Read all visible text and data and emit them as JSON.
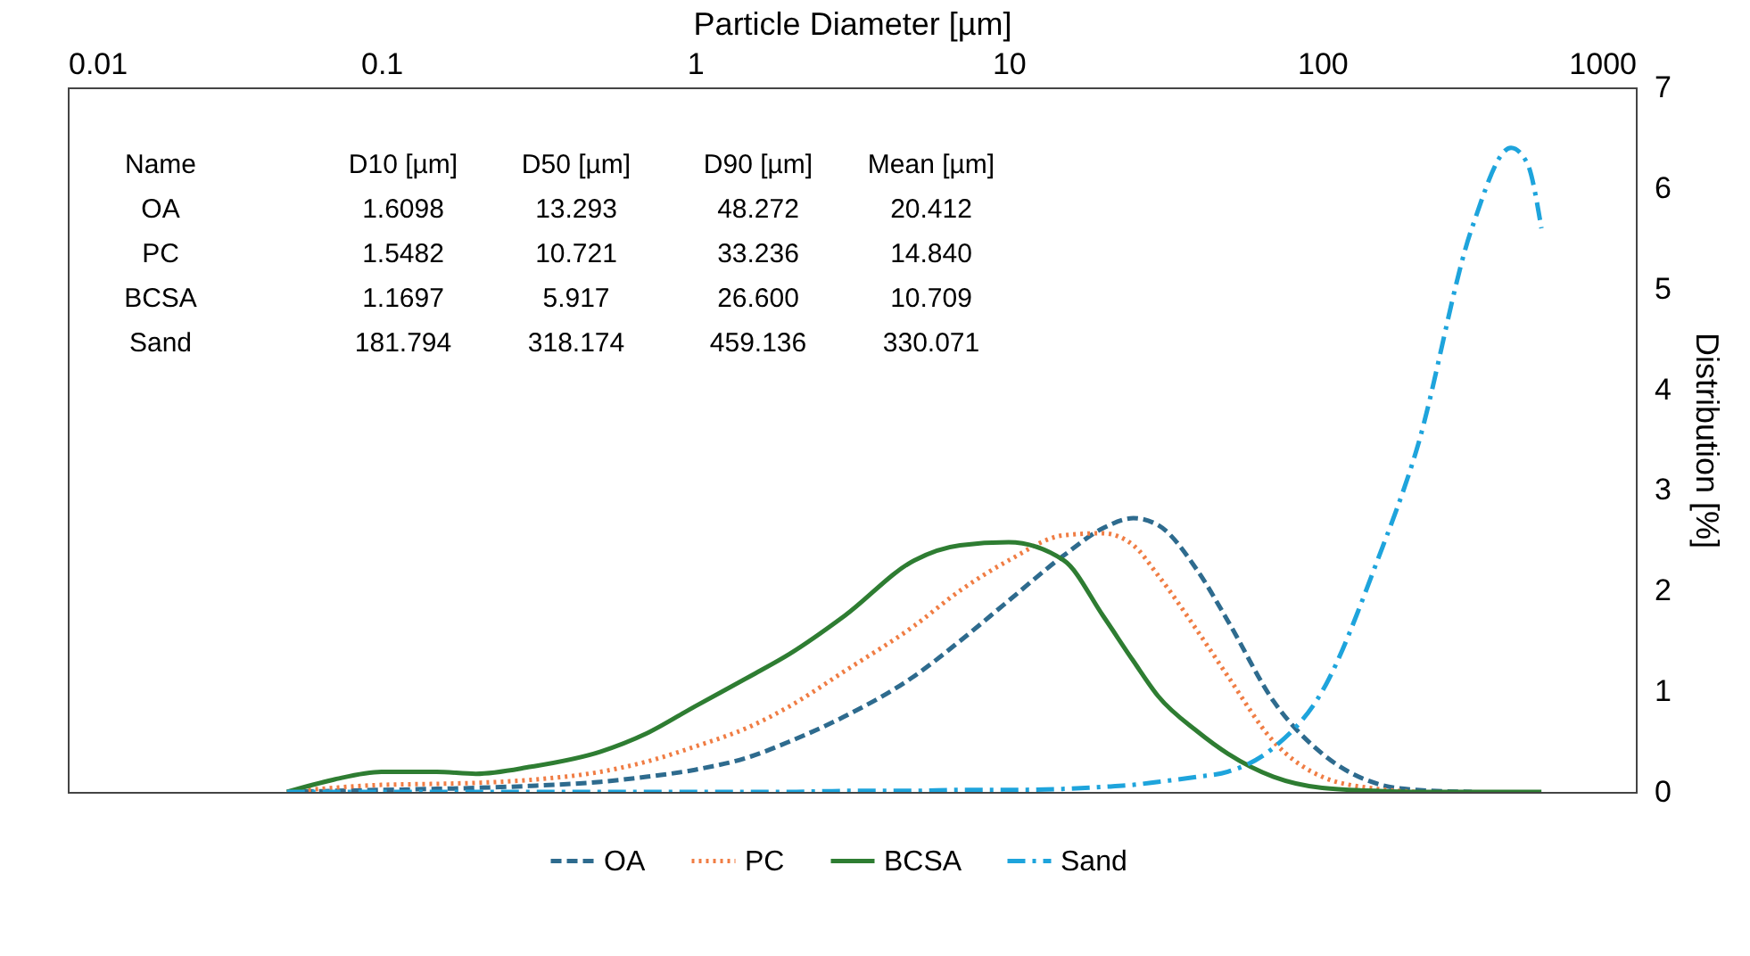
{
  "chart_data": {
    "type": "line",
    "xlabel": "Particle Diameter [µm]",
    "ylabel": "Distribution [%]",
    "x": [
      0.05,
      0.07,
      0.1,
      0.15,
      0.2,
      0.3,
      0.5,
      0.7,
      1,
      1.5,
      2,
      3,
      5,
      7,
      10,
      15,
      20,
      25,
      30,
      40,
      50,
      70,
      100,
      150,
      200,
      300,
      400,
      450,
      500
    ],
    "series": [
      {
        "name": "OA",
        "color": "#2e6b8e",
        "line_style": "dashed",
        "x": [
          0.05,
          0.07,
          0.1,
          0.15,
          0.2,
          0.3,
          0.5,
          0.7,
          1,
          1.5,
          2,
          3,
          5,
          7,
          10,
          15,
          20,
          25,
          30,
          40,
          50,
          70,
          100,
          150,
          200,
          300
        ],
        "values": [
          0,
          0.01,
          0.02,
          0.03,
          0.04,
          0.06,
          0.1,
          0.15,
          0.22,
          0.35,
          0.5,
          0.75,
          1.15,
          1.5,
          1.9,
          2.35,
          2.62,
          2.72,
          2.65,
          2.2,
          1.7,
          0.9,
          0.38,
          0.08,
          0.02,
          0
        ]
      },
      {
        "name": "PC",
        "color": "#f07d44",
        "line_style": "dotted",
        "x": [
          0.05,
          0.07,
          0.1,
          0.15,
          0.2,
          0.3,
          0.5,
          0.7,
          1,
          1.5,
          2,
          3,
          5,
          7,
          10,
          15,
          20,
          25,
          30,
          40,
          50,
          70,
          100,
          150,
          200
        ],
        "values": [
          0,
          0.04,
          0.07,
          0.08,
          0.09,
          0.12,
          0.2,
          0.3,
          0.45,
          0.65,
          0.85,
          1.2,
          1.65,
          2.0,
          2.3,
          2.55,
          2.57,
          2.45,
          2.15,
          1.6,
          1.15,
          0.5,
          0.15,
          0.03,
          0
        ]
      },
      {
        "name": "BCSA",
        "color": "#2e7d32",
        "line_style": "solid",
        "values": [
          0,
          0.12,
          0.2,
          0.2,
          0.18,
          0.25,
          0.4,
          0.58,
          0.85,
          1.15,
          1.37,
          1.75,
          2.3,
          2.45,
          2.48,
          2.3,
          1.75,
          1.3,
          0.95,
          0.6,
          0.38,
          0.15,
          0.04,
          0.01,
          0,
          0,
          0,
          0,
          0
        ]
      },
      {
        "name": "Sand",
        "color": "#1ea4dc",
        "line_style": "dashdot",
        "values": [
          0,
          0,
          0,
          0,
          0,
          0,
          0,
          0,
          0,
          0,
          0,
          0.01,
          0.01,
          0.02,
          0.02,
          0.03,
          0.05,
          0.07,
          0.1,
          0.15,
          0.2,
          0.44,
          1.0,
          2.3,
          3.4,
          5.6,
          6.4,
          6.25,
          5.6
        ]
      }
    ],
    "xlim": [
      0.01,
      1000
    ],
    "xticks": [
      0.01,
      0.1,
      1,
      10,
      100,
      1000
    ],
    "ylim": [
      0,
      7
    ],
    "yticks": [
      0,
      1,
      2,
      3,
      4,
      5,
      6,
      7
    ],
    "log": "x",
    "grid": false,
    "legend": "bottom",
    "annotations": [
      "Name",
      "D10 [µm]",
      "D50 [µm]",
      "D90 [µm]",
      "Mean [µm]",
      "OA",
      "1.6098",
      "13.293",
      "48.272",
      "20.412",
      "PC",
      "1.5482",
      "10.721",
      "33.236",
      "14.840",
      "BCSA",
      "1.1697",
      "5.917",
      "26.600",
      "10.709",
      "Sand",
      "181.794",
      "318.174",
      "459.136",
      "330.071"
    ]
  }
}
